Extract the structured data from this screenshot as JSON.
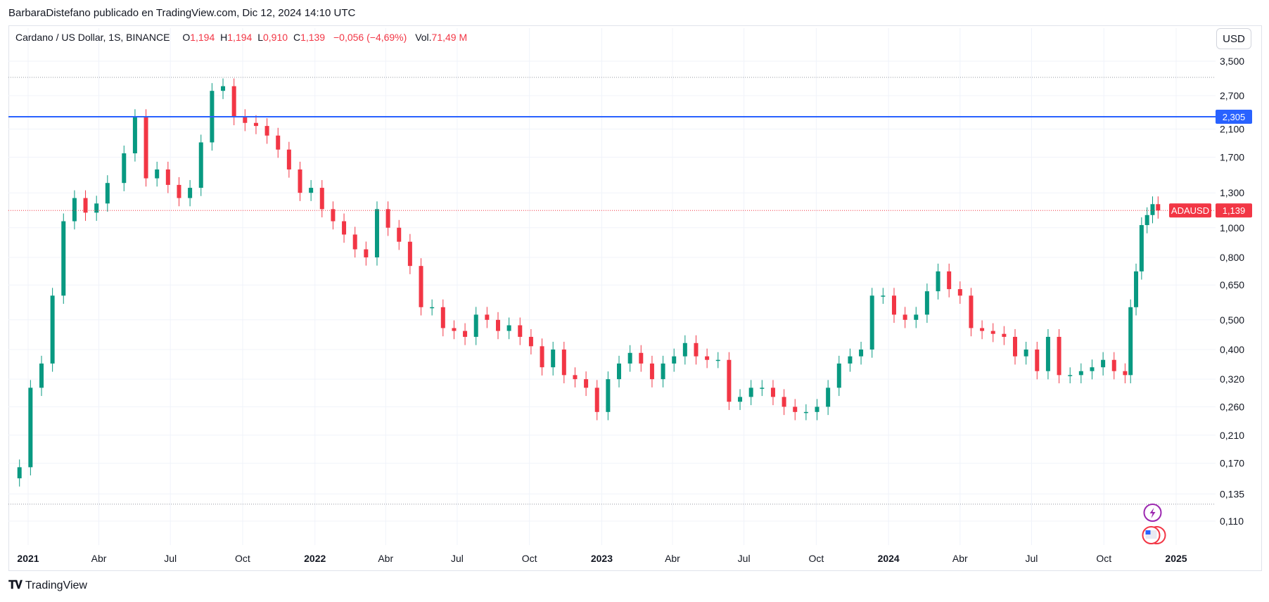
{
  "attribution": "BarbaraDistefano publicado en TradingView.com, Dic 12, 2024 14:10 UTC",
  "legend": {
    "symbol": "Cardano / US Dollar, 1S, BINANCE",
    "open_label": "O",
    "open": "1,194",
    "high_label": "H",
    "high": "1,194",
    "low_label": "L",
    "low": "0,910",
    "close_label": "C",
    "close": "1,139",
    "change": "−0,056 (−4,69%)",
    "vol_label": "Vol.",
    "vol": "71,49 M"
  },
  "currency_button": "USD",
  "branding": "TradingView",
  "colors": {
    "up": "#089981",
    "down": "#f23645",
    "hline": "#2962ff",
    "grid": "#f0f3fa"
  },
  "chart_data": {
    "type": "candlestick",
    "scale": "log",
    "symbol": "ADAUSD",
    "interval": "1S",
    "y_ticks": [
      "3,500",
      "2,700",
      "2,100",
      "1,700",
      "1,300",
      "1,000",
      "0,800",
      "0,650",
      "0,500",
      "0,400",
      "0,320",
      "0,260",
      "0,210",
      "0,170",
      "0,135",
      "0,110"
    ],
    "y_tick_values": [
      3.5,
      2.7,
      2.1,
      1.7,
      1.3,
      1.0,
      0.8,
      0.65,
      0.5,
      0.4,
      0.32,
      0.26,
      0.21,
      0.17,
      0.135,
      0.11
    ],
    "x_ticks": [
      {
        "label": "2021",
        "date": "2021-01-01",
        "year": true
      },
      {
        "label": "Abr",
        "date": "2021-04-01",
        "year": false
      },
      {
        "label": "Jul",
        "date": "2021-07-01",
        "year": false
      },
      {
        "label": "Oct",
        "date": "2021-10-01",
        "year": false
      },
      {
        "label": "2022",
        "date": "2022-01-01",
        "year": true
      },
      {
        "label": "Abr",
        "date": "2022-04-01",
        "year": false
      },
      {
        "label": "Jul",
        "date": "2022-07-01",
        "year": false
      },
      {
        "label": "Oct",
        "date": "2022-10-01",
        "year": false
      },
      {
        "label": "2023",
        "date": "2023-01-01",
        "year": true
      },
      {
        "label": "Abr",
        "date": "2023-04-01",
        "year": false
      },
      {
        "label": "Jul",
        "date": "2023-07-01",
        "year": false
      },
      {
        "label": "Oct",
        "date": "2023-10-01",
        "year": false
      },
      {
        "label": "2024",
        "date": "2024-01-01",
        "year": true
      },
      {
        "label": "Abr",
        "date": "2024-04-01",
        "year": false
      },
      {
        "label": "Jul",
        "date": "2024-07-01",
        "year": false
      },
      {
        "label": "Oct",
        "date": "2024-10-01",
        "year": false
      },
      {
        "label": "2025",
        "date": "2025-01-01",
        "year": true
      }
    ],
    "horizontal_line": {
      "value": 2.305,
      "label": "2,305"
    },
    "price_line": {
      "value": 1.139,
      "label": "1,139",
      "name": "ADAUSD"
    },
    "dotted_levels": [
      3.1,
      0.125
    ],
    "ohlc_anchors": [
      {
        "date": "2020-12-21",
        "close": 0.165
      },
      {
        "date": "2021-01-04",
        "close": 0.3
      },
      {
        "date": "2021-01-18",
        "close": 0.36
      },
      {
        "date": "2021-02-01",
        "close": 0.6
      },
      {
        "date": "2021-02-15",
        "close": 1.05
      },
      {
        "date": "2021-03-01",
        "close": 1.25
      },
      {
        "date": "2021-03-15",
        "close": 1.12
      },
      {
        "date": "2021-03-29",
        "close": 1.2
      },
      {
        "date": "2021-04-12",
        "close": 1.4
      },
      {
        "date": "2021-05-03",
        "close": 1.75
      },
      {
        "date": "2021-05-17",
        "close": 2.3
      },
      {
        "date": "2021-05-31",
        "close": 1.45
      },
      {
        "date": "2021-06-14",
        "close": 1.55
      },
      {
        "date": "2021-06-28",
        "close": 1.38
      },
      {
        "date": "2021-07-12",
        "close": 1.25
      },
      {
        "date": "2021-07-26",
        "close": 1.35
      },
      {
        "date": "2021-08-09",
        "close": 1.9
      },
      {
        "date": "2021-08-23",
        "close": 2.8
      },
      {
        "date": "2021-09-06",
        "close": 2.9
      },
      {
        "date": "2021-09-20",
        "close": 2.3
      },
      {
        "date": "2021-10-04",
        "close": 2.2
      },
      {
        "date": "2021-10-18",
        "close": 2.15
      },
      {
        "date": "2021-11-01",
        "close": 2.0
      },
      {
        "date": "2021-11-15",
        "close": 1.8
      },
      {
        "date": "2021-11-29",
        "close": 1.55
      },
      {
        "date": "2021-12-13",
        "close": 1.3
      },
      {
        "date": "2021-12-27",
        "close": 1.35
      },
      {
        "date": "2022-01-10",
        "close": 1.15
      },
      {
        "date": "2022-01-24",
        "close": 1.05
      },
      {
        "date": "2022-02-07",
        "close": 0.95
      },
      {
        "date": "2022-02-21",
        "close": 0.85
      },
      {
        "date": "2022-03-07",
        "close": 0.8
      },
      {
        "date": "2022-03-21",
        "close": 1.15
      },
      {
        "date": "2022-04-04",
        "close": 1.0
      },
      {
        "date": "2022-04-18",
        "close": 0.9
      },
      {
        "date": "2022-05-02",
        "close": 0.75
      },
      {
        "date": "2022-05-16",
        "close": 0.55
      },
      {
        "date": "2022-05-30",
        "close": 0.55
      },
      {
        "date": "2022-06-13",
        "close": 0.47
      },
      {
        "date": "2022-06-27",
        "close": 0.46
      },
      {
        "date": "2022-07-11",
        "close": 0.44
      },
      {
        "date": "2022-07-25",
        "close": 0.52
      },
      {
        "date": "2022-08-08",
        "close": 0.5
      },
      {
        "date": "2022-08-22",
        "close": 0.46
      },
      {
        "date": "2022-09-05",
        "close": 0.48
      },
      {
        "date": "2022-09-19",
        "close": 0.44
      },
      {
        "date": "2022-10-03",
        "close": 0.41
      },
      {
        "date": "2022-10-17",
        "close": 0.35
      },
      {
        "date": "2022-10-31",
        "close": 0.4
      },
      {
        "date": "2022-11-14",
        "close": 0.33
      },
      {
        "date": "2022-11-28",
        "close": 0.32
      },
      {
        "date": "2022-12-12",
        "close": 0.3
      },
      {
        "date": "2022-12-26",
        "close": 0.25
      },
      {
        "date": "2023-01-09",
        "close": 0.32
      },
      {
        "date": "2023-01-23",
        "close": 0.36
      },
      {
        "date": "2023-02-06",
        "close": 0.39
      },
      {
        "date": "2023-02-20",
        "close": 0.36
      },
      {
        "date": "2023-03-06",
        "close": 0.32
      },
      {
        "date": "2023-03-20",
        "close": 0.36
      },
      {
        "date": "2023-04-03",
        "close": 0.38
      },
      {
        "date": "2023-04-17",
        "close": 0.42
      },
      {
        "date": "2023-05-01",
        "close": 0.38
      },
      {
        "date": "2023-05-15",
        "close": 0.37
      },
      {
        "date": "2023-05-29",
        "close": 0.37
      },
      {
        "date": "2023-06-12",
        "close": 0.27
      },
      {
        "date": "2023-06-26",
        "close": 0.28
      },
      {
        "date": "2023-07-10",
        "close": 0.3
      },
      {
        "date": "2023-07-24",
        "close": 0.3
      },
      {
        "date": "2023-08-07",
        "close": 0.28
      },
      {
        "date": "2023-08-21",
        "close": 0.26
      },
      {
        "date": "2023-09-04",
        "close": 0.25
      },
      {
        "date": "2023-09-18",
        "close": 0.25
      },
      {
        "date": "2023-10-02",
        "close": 0.26
      },
      {
        "date": "2023-10-16",
        "close": 0.3
      },
      {
        "date": "2023-10-30",
        "close": 0.36
      },
      {
        "date": "2023-11-13",
        "close": 0.38
      },
      {
        "date": "2023-11-27",
        "close": 0.4
      },
      {
        "date": "2023-12-11",
        "close": 0.6
      },
      {
        "date": "2023-12-25",
        "close": 0.6
      },
      {
        "date": "2024-01-08",
        "close": 0.52
      },
      {
        "date": "2024-01-22",
        "close": 0.5
      },
      {
        "date": "2024-02-05",
        "close": 0.52
      },
      {
        "date": "2024-02-19",
        "close": 0.62
      },
      {
        "date": "2024-03-04",
        "close": 0.72
      },
      {
        "date": "2024-03-18",
        "close": 0.63
      },
      {
        "date": "2024-04-01",
        "close": 0.6
      },
      {
        "date": "2024-04-15",
        "close": 0.47
      },
      {
        "date": "2024-04-29",
        "close": 0.46
      },
      {
        "date": "2024-05-13",
        "close": 0.45
      },
      {
        "date": "2024-05-27",
        "close": 0.44
      },
      {
        "date": "2024-06-10",
        "close": 0.38
      },
      {
        "date": "2024-06-24",
        "close": 0.4
      },
      {
        "date": "2024-07-08",
        "close": 0.34
      },
      {
        "date": "2024-07-22",
        "close": 0.44
      },
      {
        "date": "2024-08-05",
        "close": 0.33
      },
      {
        "date": "2024-08-19",
        "close": 0.33
      },
      {
        "date": "2024-09-02",
        "close": 0.34
      },
      {
        "date": "2024-09-16",
        "close": 0.35
      },
      {
        "date": "2024-09-30",
        "close": 0.37
      },
      {
        "date": "2024-10-14",
        "close": 0.34
      },
      {
        "date": "2024-10-28",
        "close": 0.33
      },
      {
        "date": "2024-11-04",
        "close": 0.55
      },
      {
        "date": "2024-11-11",
        "close": 0.72
      },
      {
        "date": "2024-11-18",
        "close": 1.02
      },
      {
        "date": "2024-11-25",
        "close": 1.1
      },
      {
        "date": "2024-12-02",
        "close": 1.194
      },
      {
        "date": "2024-12-09",
        "close": 1.139
      }
    ]
  }
}
